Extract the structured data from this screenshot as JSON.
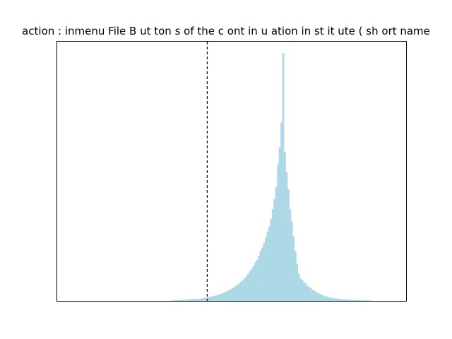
{
  "chart_data": {
    "type": "bar",
    "title": "action : inmenu  File B ut ton s of the c ont in u ation in st it ute ( sh ort name",
    "xlabel": "",
    "ylabel": "",
    "x_range": [
      0,
      100
    ],
    "y_range": [
      0,
      1
    ],
    "grid": false,
    "legend": "none",
    "bar_color": "#add8e6",
    "reference_line": {
      "x": 43,
      "style": "dashed",
      "color": "#000000"
    },
    "bins": {
      "x_start": 0,
      "bin_width": 0.5,
      "values": [
        0,
        0,
        0,
        0,
        0,
        0,
        0,
        0,
        0,
        0,
        0,
        0,
        0,
        0,
        0,
        0,
        0,
        0,
        0,
        0,
        0,
        0,
        0,
        0,
        0,
        0,
        0,
        0,
        0,
        0,
        0,
        0,
        0,
        0,
        0,
        0,
        0,
        0,
        0,
        0,
        0,
        0,
        0,
        0,
        0,
        0,
        0,
        0,
        0,
        0,
        0,
        0,
        0,
        0,
        0,
        0,
        0,
        0,
        0,
        0,
        0,
        0,
        0,
        0,
        0,
        0,
        0.002,
        0.002,
        0.003,
        0.003,
        0.004,
        0.004,
        0.004,
        0.005,
        0.005,
        0.006,
        0.007,
        0.006,
        0.008,
        0.008,
        0.009,
        0.008,
        0.01,
        0.011,
        0.012,
        0.013,
        0.015,
        0.016,
        0.018,
        0.02,
        0.021,
        0.023,
        0.025,
        0.028,
        0.03,
        0.033,
        0.036,
        0.04,
        0.043,
        0.047,
        0.051,
        0.056,
        0.061,
        0.066,
        0.072,
        0.078,
        0.085,
        0.092,
        0.1,
        0.11,
        0.12,
        0.13,
        0.14,
        0.155,
        0.165,
        0.18,
        0.2,
        0.215,
        0.235,
        0.255,
        0.28,
        0.3,
        0.33,
        0.37,
        0.41,
        0.46,
        0.55,
        0.62,
        0.72,
        1.0,
        0.6,
        0.52,
        0.45,
        0.37,
        0.32,
        0.26,
        0.2,
        0.15,
        0.11,
        0.09,
        0.085,
        0.075,
        0.07,
        0.06,
        0.055,
        0.05,
        0.045,
        0.04,
        0.036,
        0.032,
        0.028,
        0.025,
        0.022,
        0.019,
        0.017,
        0.015,
        0.013,
        0.012,
        0.011,
        0.01,
        0.009,
        0.008,
        0.007,
        0.007,
        0.006,
        0.006,
        0.005,
        0.005,
        0.004,
        0.004,
        0.004,
        0.003,
        0.003,
        0.003,
        0.002,
        0.002,
        0.002,
        0.002,
        0.002,
        0.002,
        0,
        0,
        0,
        0,
        0,
        0,
        0,
        0,
        0,
        0,
        0,
        0,
        0,
        0,
        0,
        0,
        0,
        0,
        0,
        0,
        0,
        0,
        0,
        0,
        0,
        0,
        0,
        0,
        0,
        0,
        0,
        0,
        0,
        0,
        0,
        0,
        0,
        0,
        0,
        0,
        0,
        0,
        0,
        0,
        0,
        0,
        0,
        0,
        0,
        0,
        0,
        0,
        0,
        0,
        0,
        0,
        0,
        0,
        0,
        0
      ]
    }
  }
}
